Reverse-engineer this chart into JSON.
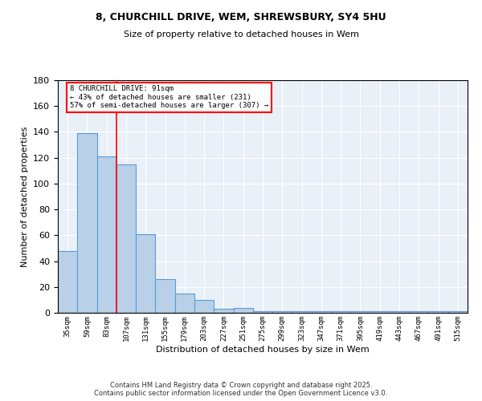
{
  "title1": "8, CHURCHILL DRIVE, WEM, SHREWSBURY, SY4 5HU",
  "title2": "Size of property relative to detached houses in Wem",
  "xlabel": "Distribution of detached houses by size in Wem",
  "ylabel": "Number of detached properties",
  "categories": [
    "35sqm",
    "59sqm",
    "83sqm",
    "107sqm",
    "131sqm",
    "155sqm",
    "179sqm",
    "203sqm",
    "227sqm",
    "251sqm",
    "275sqm",
    "299sqm",
    "323sqm",
    "347sqm",
    "371sqm",
    "395sqm",
    "419sqm",
    "443sqm",
    "467sqm",
    "491sqm",
    "515sqm"
  ],
  "bar_values": [
    48,
    139,
    121,
    115,
    61,
    26,
    15,
    10,
    3,
    4,
    1,
    1,
    1,
    1,
    1,
    1,
    1,
    1,
    1,
    1,
    1
  ],
  "ylim": [
    0,
    180
  ],
  "yticks": [
    0,
    20,
    40,
    60,
    80,
    100,
    120,
    140,
    160,
    180
  ],
  "bar_color": "#b8d0e8",
  "bar_edge_color": "#5b9bd5",
  "vline_x": 2.5,
  "vline_color": "red",
  "annotation_line1": "8 CHURCHILL DRIVE: 91sqm",
  "annotation_line2": "← 43% of detached houses are smaller (231)",
  "annotation_line3": "57% of semi-detached houses are larger (307) →",
  "bg_color": "#eaf0f8",
  "grid_color": "#ffffff",
  "footer1": "Contains HM Land Registry data © Crown copyright and database right 2025.",
  "footer2": "Contains public sector information licensed under the Open Government Licence v3.0."
}
